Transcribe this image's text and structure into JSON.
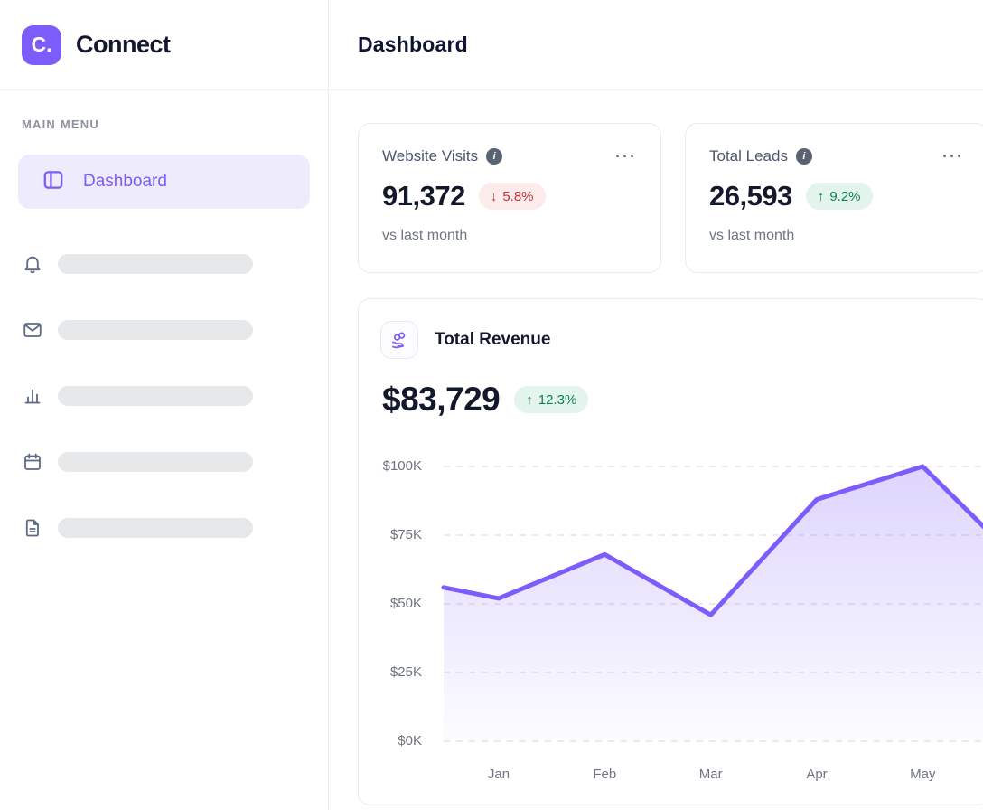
{
  "sidebar": {
    "logo": {
      "mark": "C.",
      "name": "Connect"
    },
    "section_label": "MAIN MENU",
    "active_item": {
      "label": "Dashboard"
    },
    "skeleton_items": [
      "bell",
      "mail",
      "bar-chart",
      "calendar",
      "document"
    ]
  },
  "header": {
    "title": "Dashboard"
  },
  "icons": {
    "info": "i",
    "dots": "···",
    "arrow_up": "↑",
    "arrow_down": "↓"
  },
  "stats": [
    {
      "title": "Website Visits",
      "value": "91,372",
      "delta": "5.8%",
      "direction": "down",
      "caption": "vs last month"
    },
    {
      "title": "Total Leads",
      "value": "26,593",
      "delta": "9.2%",
      "direction": "up",
      "caption": "vs last month"
    }
  ],
  "revenue": {
    "title": "Total Revenue",
    "value": "$83,729",
    "delta": "12.3%",
    "direction": "up"
  },
  "colors": {
    "accent": "#7c5cfa",
    "accent_bg": "#edebfc",
    "badge_down_text": "#c2343c",
    "badge_down_bg": "#fbebeb",
    "badge_up_text": "#0e7d56",
    "badge_up_bg": "#e2f4ec",
    "gridline": "#e4e4ea",
    "axis_text": "#6f7480"
  },
  "chart_data": {
    "type": "area",
    "title": "Total Revenue",
    "categories": [
      "Jan",
      "Feb",
      "Mar",
      "Apr",
      "May"
    ],
    "values_usd_k": [
      52,
      68,
      46,
      88,
      100
    ],
    "edge_points_usd_k": {
      "lead_in": 56,
      "trail_out": 78
    },
    "y_ticks": [
      "$100K",
      "$75K",
      "$50K",
      "$25K",
      "$0K"
    ],
    "y_tick_values_k": [
      100,
      75,
      50,
      25,
      0
    ],
    "ylim_k": [
      0,
      100
    ],
    "grid": "dashed-horizontal",
    "legend": "none",
    "line_color": "#7c5cfa"
  }
}
